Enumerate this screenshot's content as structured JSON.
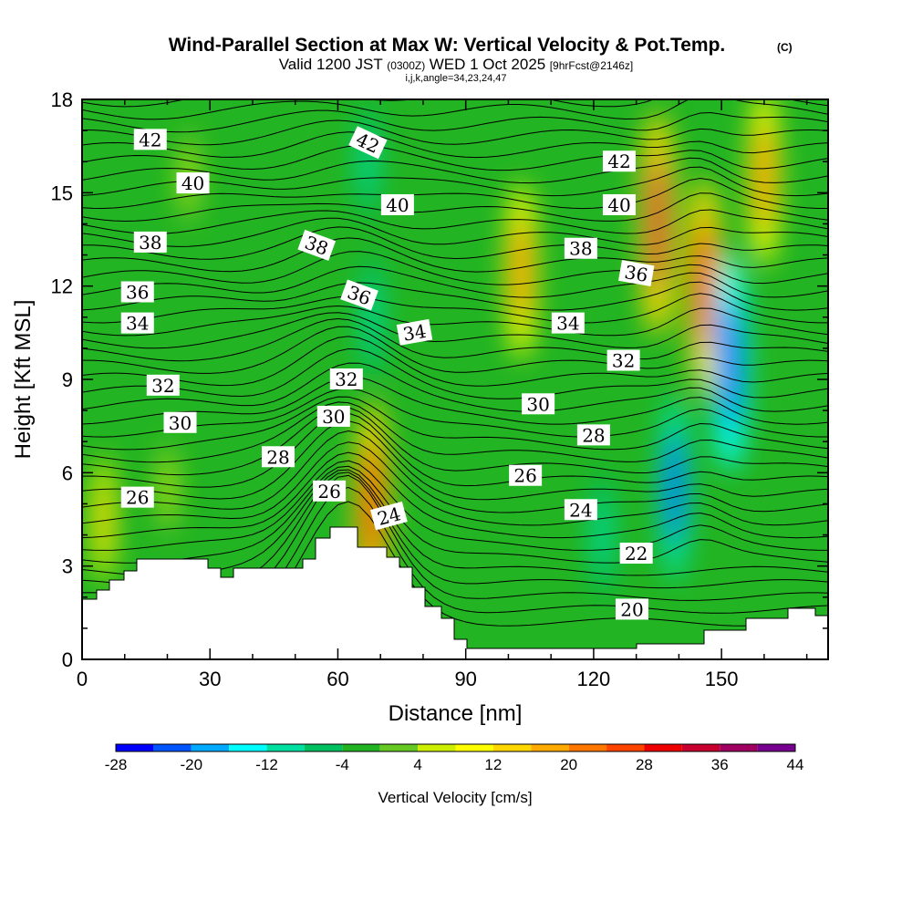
{
  "title": "Wind-Parallel Section at Max W: Vertical Velocity & Pot.Temp.",
  "title_mark": "(C)",
  "subtitle_valid": "Valid 1200 JST",
  "subtitle_utc": "(0300Z)",
  "subtitle_date": "WED 1 Oct 2025",
  "subtitle_fcst": "[9hrFcst@2146z]",
  "subtitle_idx": "i,j,k,angle=34,23,24,47",
  "chart_data": {
    "type": "heatmap",
    "xlabel": "Distance [nm]",
    "ylabel": "Height [Kft MSL]",
    "xlim": [
      0,
      175
    ],
    "ylim": [
      0,
      18
    ],
    "xticks": [
      "0",
      "30",
      "60",
      "90",
      "120",
      "150"
    ],
    "xtick_values": [
      0,
      30,
      60,
      90,
      120,
      150
    ],
    "yticks": [
      "0",
      "3",
      "6",
      "9",
      "12",
      "15",
      "18"
    ],
    "ytick_values": [
      0,
      3,
      6,
      9,
      12,
      15,
      18
    ],
    "colorbar": {
      "label": "Vertical Velocity [cm/s]",
      "tick_labels": [
        "-28",
        "-20",
        "-12",
        "-4",
        "4",
        "12",
        "20",
        "28",
        "36",
        "44"
      ],
      "tick_values": [
        -28,
        -20,
        -12,
        -4,
        4,
        12,
        20,
        28,
        36,
        44
      ],
      "levels": [
        -28,
        -24,
        -20,
        -16,
        -12,
        -8,
        -4,
        0,
        4,
        8,
        12,
        16,
        20,
        24,
        28,
        32,
        36,
        40,
        44
      ],
      "colors": [
        "#0000ff",
        "#0055ff",
        "#00aaff",
        "#00ffff",
        "#00e0a0",
        "#00c060",
        "#22b422",
        "#66c822",
        "#ccee00",
        "#ffff00",
        "#ffd700",
        "#ffaa00",
        "#ff7700",
        "#ff4400",
        "#ee0000",
        "#c80030",
        "#a00060",
        "#780090"
      ]
    },
    "velocity_features": [
      {
        "x": 5,
        "y": 4.5,
        "value": 12
      },
      {
        "x": 20,
        "y": 5.5,
        "value": 6
      },
      {
        "x": 25,
        "y": 15.5,
        "value": 6
      },
      {
        "x": 68,
        "y": 5,
        "value": 28
      },
      {
        "x": 67,
        "y": 16,
        "value": -10
      },
      {
        "x": 68,
        "y": 11,
        "value": -12
      },
      {
        "x": 103,
        "y": 12.5,
        "value": 22
      },
      {
        "x": 135,
        "y": 14,
        "value": 32
      },
      {
        "x": 139,
        "y": 5.5,
        "value": -24
      },
      {
        "x": 146,
        "y": 12,
        "value": 30
      },
      {
        "x": 152,
        "y": 9.5,
        "value": -30
      },
      {
        "x": 122,
        "y": 4,
        "value": -12
      },
      {
        "x": 160,
        "y": 15.5,
        "value": 22
      }
    ],
    "theta_contours": [
      20,
      22,
      24,
      26,
      28,
      30,
      32,
      34,
      36,
      38,
      40,
      42
    ],
    "contour_labels": [
      {
        "text": "42",
        "x": 16,
        "y": 16.7,
        "rot": 0
      },
      {
        "text": "40",
        "x": 26,
        "y": 15.3,
        "rot": 0
      },
      {
        "text": "38",
        "x": 16,
        "y": 13.4,
        "rot": 0
      },
      {
        "text": "36",
        "x": 13,
        "y": 11.8,
        "rot": 0
      },
      {
        "text": "34",
        "x": 13,
        "y": 10.8,
        "rot": 0
      },
      {
        "text": "32",
        "x": 19,
        "y": 8.8,
        "rot": 0
      },
      {
        "text": "30",
        "x": 23,
        "y": 7.6,
        "rot": 0
      },
      {
        "text": "26",
        "x": 13,
        "y": 5.2,
        "rot": 0
      },
      {
        "text": "28",
        "x": 46,
        "y": 6.5,
        "rot": 0
      },
      {
        "text": "26",
        "x": 58,
        "y": 5.4,
        "rot": 0
      },
      {
        "text": "30",
        "x": 59,
        "y": 7.8,
        "rot": 0
      },
      {
        "text": "32",
        "x": 62,
        "y": 9.0,
        "rot": 0
      },
      {
        "text": "38",
        "x": 55,
        "y": 13.3,
        "rot": 20
      },
      {
        "text": "36",
        "x": 65,
        "y": 11.7,
        "rot": 20
      },
      {
        "text": "42",
        "x": 67,
        "y": 16.6,
        "rot": 25
      },
      {
        "text": "40",
        "x": 74,
        "y": 14.6,
        "rot": 0
      },
      {
        "text": "34",
        "x": 78,
        "y": 10.5,
        "rot": -10
      },
      {
        "text": "24",
        "x": 72,
        "y": 4.6,
        "rot": -15
      },
      {
        "text": "30",
        "x": 107,
        "y": 8.2,
        "rot": 0
      },
      {
        "text": "26",
        "x": 104,
        "y": 5.9,
        "rot": 0
      },
      {
        "text": "34",
        "x": 114,
        "y": 10.8,
        "rot": 0
      },
      {
        "text": "38",
        "x": 117,
        "y": 13.2,
        "rot": 0
      },
      {
        "text": "24",
        "x": 117,
        "y": 4.8,
        "rot": 0
      },
      {
        "text": "28",
        "x": 120,
        "y": 7.2,
        "rot": 0
      },
      {
        "text": "32",
        "x": 127,
        "y": 9.6,
        "rot": 0
      },
      {
        "text": "36",
        "x": 130,
        "y": 12.4,
        "rot": 10
      },
      {
        "text": "40",
        "x": 126,
        "y": 14.6,
        "rot": 0
      },
      {
        "text": "42",
        "x": 126,
        "y": 16.0,
        "rot": 0
      },
      {
        "text": "22",
        "x": 130,
        "y": 3.4,
        "rot": 0
      },
      {
        "text": "20",
        "x": 129,
        "y": 1.6,
        "rot": 0
      }
    ]
  }
}
